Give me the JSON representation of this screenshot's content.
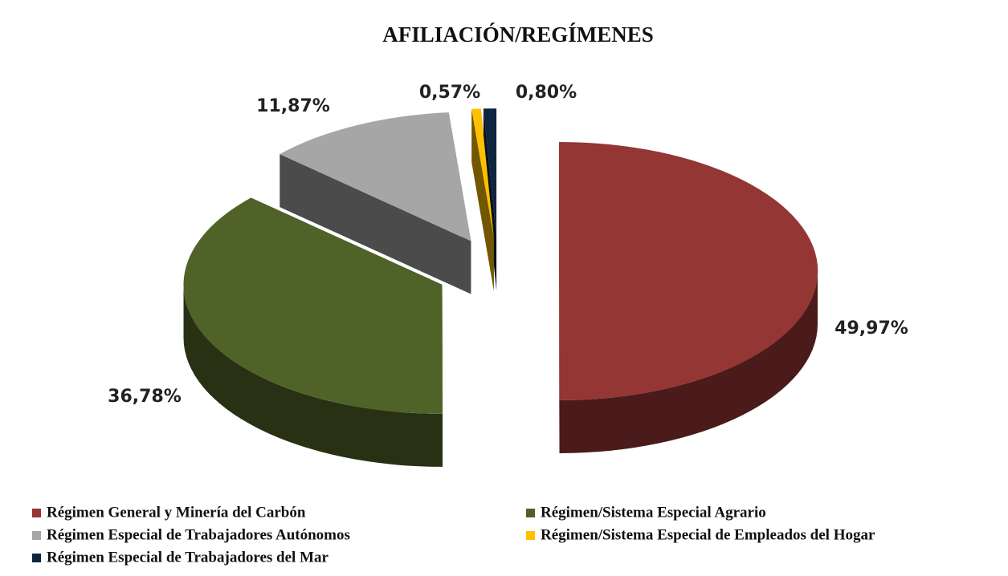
{
  "chart_data": {
    "type": "pie3d",
    "title": "AFILIACIÓN/REGÍMENES",
    "categories": [
      "Régimen General y Minería del Carbón",
      "Régimen/Sistema Especial Agrario",
      "Régimen Especial de Trabajadores Autónomos",
      "Régimen/Sistema Especial de Empleados del Hogar",
      "Régimen Especial de Trabajadores del Mar"
    ],
    "values": [
      49.97,
      36.78,
      11.87,
      0.57,
      0.8
    ],
    "value_labels": [
      "49,97%",
      "36,78%",
      "11,87%",
      "0,57%",
      "0,80%"
    ],
    "colors": [
      "#943634",
      "#4f6228",
      "#a6a6a6",
      "#ffc000",
      "#0f243e"
    ],
    "legend": "bottom"
  }
}
